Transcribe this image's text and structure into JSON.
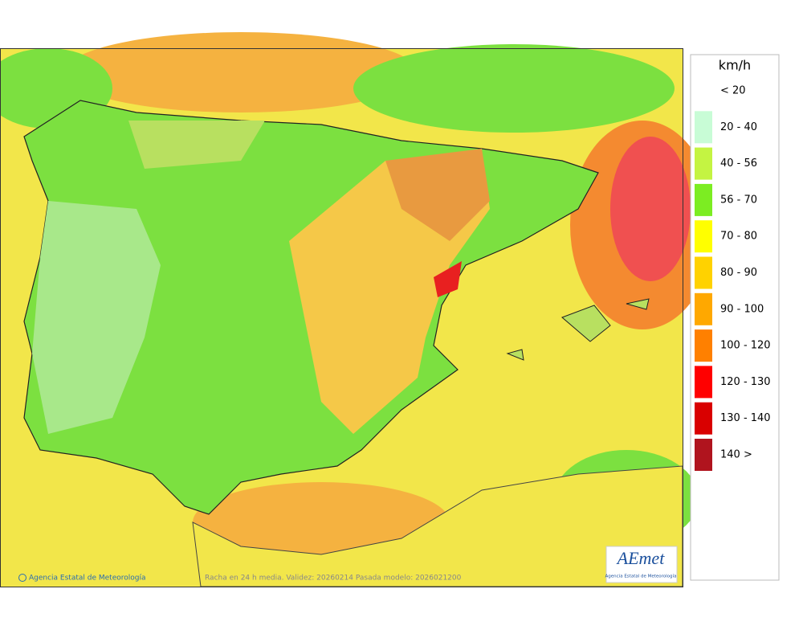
{
  "legend": {
    "title": "km/h",
    "items": [
      {
        "label": "< 20",
        "color": "#ffffff"
      },
      {
        "label": "20 - 40",
        "color": "#c8fcd6"
      },
      {
        "label": "40 - 56",
        "color": "#c4f442"
      },
      {
        "label": "56 - 70",
        "color": "#7ced22"
      },
      {
        "label": "70 - 80",
        "color": "#ffff00"
      },
      {
        "label": "80 - 90",
        "color": "#ffd200"
      },
      {
        "label": "90 - 100",
        "color": "#ffa800"
      },
      {
        "label": "100 - 120",
        "color": "#ff8000"
      },
      {
        "label": "120 - 130",
        "color": "#ff0000"
      },
      {
        "label": "130 - 140",
        "color": "#d90000"
      },
      {
        "label": "140 >",
        "color": "#b0141e"
      }
    ]
  },
  "footer": {
    "credit": "Agencia Estatal de Meteorología",
    "caption": "Racha en 24 h media. Validez: 20260214 Pasada modelo: 2026021200"
  },
  "logo": {
    "text": "AEmet",
    "subtitle": "Agencia Estatal de Meteorología"
  }
}
